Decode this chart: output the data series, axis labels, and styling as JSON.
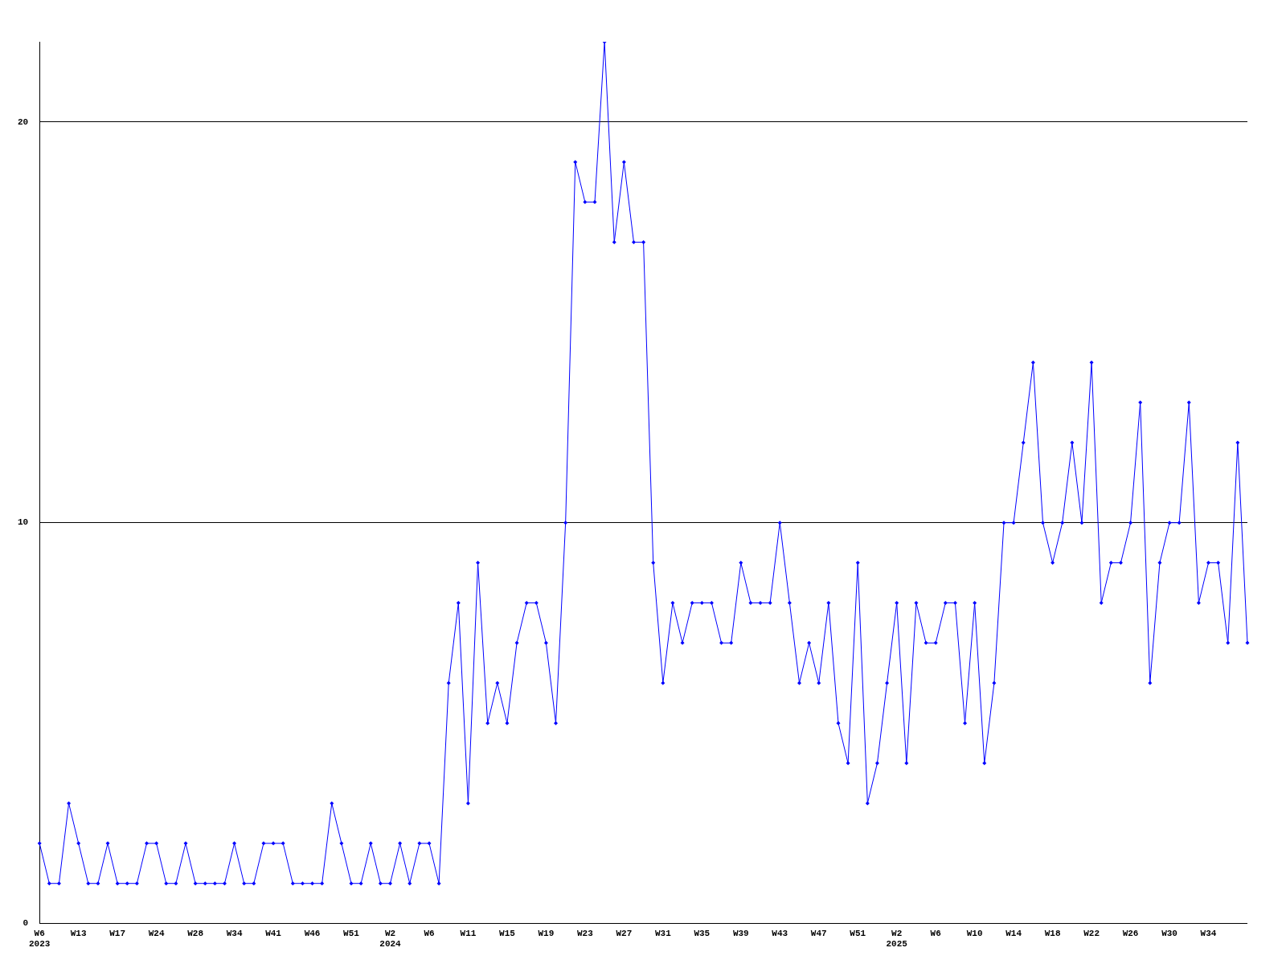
{
  "chart_data": {
    "type": "line",
    "categories": [
      "W6\n2023",
      null,
      null,
      null,
      "W13",
      null,
      null,
      null,
      "W17",
      null,
      null,
      null,
      "W24",
      null,
      null,
      null,
      "W28",
      null,
      null,
      null,
      "W34",
      null,
      null,
      null,
      "W41",
      null,
      null,
      null,
      "W46",
      null,
      null,
      null,
      "W51",
      null,
      null,
      null,
      "W2\n2024",
      null,
      null,
      null,
      "W6",
      null,
      null,
      null,
      "W11",
      null,
      null,
      null,
      "W15",
      null,
      null,
      null,
      "W19",
      null,
      null,
      null,
      "W23",
      null,
      null,
      null,
      "W27",
      null,
      null,
      null,
      "W31",
      null,
      null,
      null,
      "W35",
      null,
      null,
      null,
      "W39",
      null,
      null,
      null,
      "W43",
      null,
      null,
      null,
      "W47",
      null,
      null,
      null,
      "W51",
      null,
      null,
      null,
      "W2\n2025",
      null,
      null,
      null,
      "W6",
      null,
      null,
      null,
      "W10",
      null,
      null,
      null,
      "W14",
      null,
      null,
      null,
      "W18",
      null,
      null,
      null,
      "W22",
      null,
      null,
      null,
      "W26",
      null,
      null,
      null,
      "W30",
      null,
      null,
      null,
      "W34",
      null,
      null,
      null,
      null
    ],
    "series": [
      {
        "color": "#0000ff",
        "values": [
          2,
          1,
          1,
          3,
          2,
          1,
          1,
          2,
          1,
          1,
          1,
          2,
          2,
          1,
          1,
          2,
          1,
          1,
          1,
          1,
          2,
          1,
          1,
          2,
          2,
          2,
          1,
          1,
          1,
          1,
          3,
          2,
          1,
          1,
          2,
          1,
          1,
          2,
          1,
          2,
          2,
          1,
          6,
          8,
          3,
          9,
          5,
          6,
          5,
          7,
          8,
          8,
          7,
          5,
          10,
          19,
          18,
          18,
          22,
          17,
          19,
          17,
          17,
          9,
          6,
          8,
          7,
          8,
          8,
          8,
          7,
          7,
          9,
          8,
          8,
          8,
          10,
          8,
          6,
          7,
          6,
          8,
          5,
          4,
          9,
          3,
          4,
          6,
          8,
          4,
          8,
          7,
          7,
          8,
          8,
          5,
          8,
          4,
          6,
          10,
          10,
          12,
          14,
          10,
          9,
          10,
          12,
          10,
          14,
          8,
          9,
          9,
          10,
          13,
          6,
          9,
          10,
          10,
          13,
          8,
          9,
          9,
          7,
          12,
          7
        ]
      }
    ],
    "ylim": [
      0,
      22
    ],
    "yticks": [
      0,
      10,
      20
    ],
    "grid": "y",
    "marker": "diamond",
    "line_style": "solid",
    "legend": false
  }
}
